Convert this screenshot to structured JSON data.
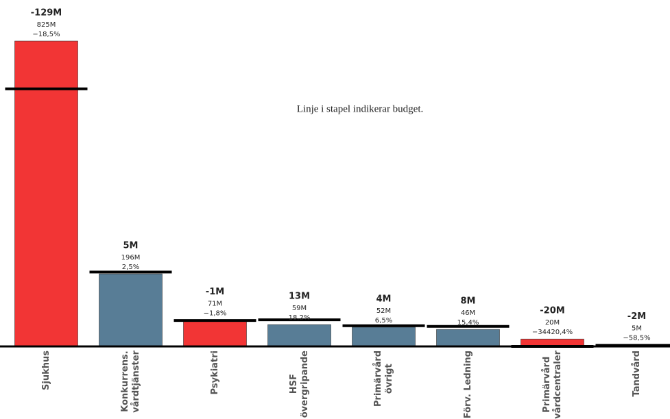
{
  "chart_data": {
    "type": "bar",
    "annotation": "Linje i stapel indikerar budget.",
    "categories": [
      "Sjukhus",
      "Konkurrens.\nvårdtjänster",
      "Psykiatri",
      "HSF\növergripande",
      "Primärvård\növrigt",
      "Förv. Ledning",
      "Primärvård\nvårdcentraler",
      "Tandvård"
    ],
    "values": [
      825,
      196,
      71,
      59,
      52,
      46,
      20,
      5
    ],
    "value_labels": [
      "825M",
      "196M",
      "71M",
      "59M",
      "52M",
      "46M",
      "20M",
      "5M"
    ],
    "budget": [
      696,
      201,
      70,
      72,
      56,
      54,
      0,
      3
    ],
    "deviation": [
      -129,
      5,
      -1,
      13,
      4,
      8,
      -20,
      -2
    ],
    "deviation_labels": [
      "-129M",
      "5M",
      "-1M",
      "13M",
      "4M",
      "8M",
      "-20M",
      "-2M"
    ],
    "percent": [
      -18.5,
      2.5,
      -1.8,
      18.2,
      6.5,
      15.4,
      -34420.4,
      -58.5
    ],
    "percent_labels": [
      "−18,5%",
      "2,5%",
      "−1,8%",
      "18,2%",
      "6,5%",
      "15,4%",
      "−34420,4%",
      "−58,5%"
    ],
    "colors": [
      "#f23535",
      "#587d96",
      "#f23535",
      "#587d96",
      "#587d96",
      "#587d96",
      "#f23535",
      "#f23535"
    ],
    "budget_color": "#000000",
    "ylim": [
      0,
      825
    ]
  }
}
